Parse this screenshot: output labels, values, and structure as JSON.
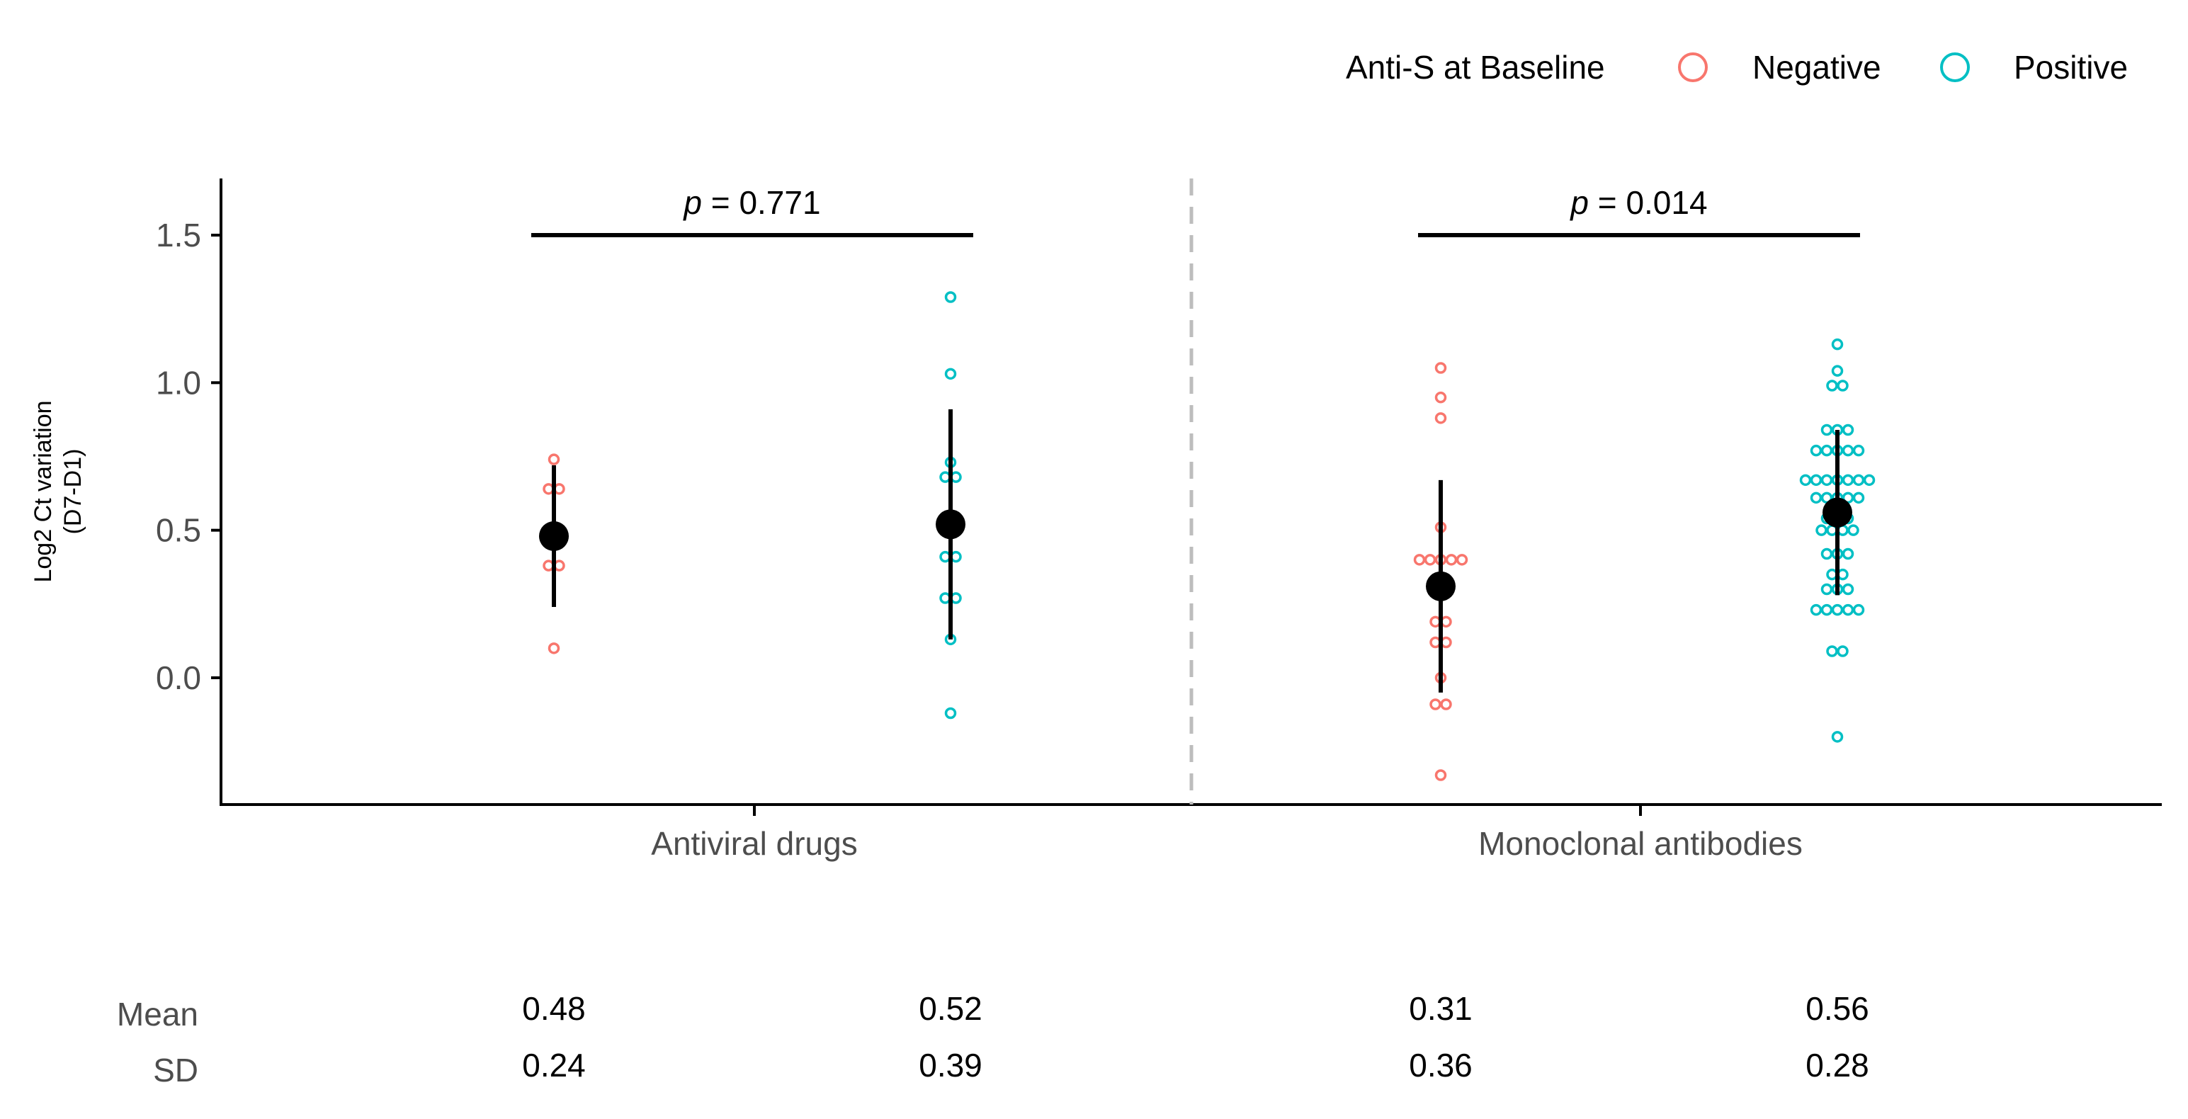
{
  "chart_data": {
    "type": "scatter",
    "title": "",
    "ylabel_line1": "Log2 Ct variation",
    "ylabel_line2": "(D7-D1)",
    "xlabel": "",
    "ylim": [
      -0.45,
      1.7
    ],
    "yticks": [
      "0.0",
      "0.5",
      "1.0",
      "1.5"
    ],
    "ytick_values": [
      0.0,
      0.5,
      1.0,
      1.5
    ],
    "legend": {
      "title": "Anti-S at Baseline",
      "position": "top-right",
      "entries": [
        {
          "label": "Negative",
          "color": "#F8766D"
        },
        {
          "label": "Positive",
          "color": "#00BFC4"
        }
      ]
    },
    "panels": [
      {
        "category": "Antiviral drugs",
        "p_prefix": "p",
        "p_value": " = 0.771",
        "groups": [
          {
            "series": "Negative",
            "mean": 0.48,
            "sd": 0.24,
            "mean_label": "0.48",
            "sd_label": "0.24",
            "points": [
              0.74,
              0.64,
              0.64,
              0.38,
              0.38,
              0.1
            ]
          },
          {
            "series": "Positive",
            "mean": 0.52,
            "sd": 0.39,
            "mean_label": "0.52",
            "sd_label": "0.39",
            "points": [
              1.29,
              1.03,
              0.73,
              0.68,
              0.68,
              0.41,
              0.41,
              0.27,
              0.27,
              0.13,
              -0.12
            ]
          }
        ]
      },
      {
        "category": "Monoclonal antibodies",
        "p_prefix": "p",
        "p_value": " = 0.014",
        "groups": [
          {
            "series": "Negative",
            "mean": 0.31,
            "sd": 0.36,
            "mean_label": "0.31",
            "sd_label": "0.36",
            "points": [
              1.05,
              0.95,
              0.88,
              0.51,
              0.4,
              0.4,
              0.4,
              0.4,
              0.4,
              0.19,
              0.19,
              0.12,
              0.12,
              0.0,
              -0.09,
              -0.09,
              -0.33
            ]
          },
          {
            "series": "Positive",
            "mean": 0.56,
            "sd": 0.28,
            "mean_label": "0.56",
            "sd_label": "0.28",
            "points": [
              1.13,
              1.04,
              0.99,
              0.99,
              0.84,
              0.84,
              0.84,
              0.77,
              0.77,
              0.77,
              0.77,
              0.77,
              0.67,
              0.67,
              0.67,
              0.67,
              0.67,
              0.67,
              0.67,
              0.61,
              0.61,
              0.61,
              0.61,
              0.61,
              0.54,
              0.54,
              0.54,
              0.5,
              0.5,
              0.5,
              0.5,
              0.42,
              0.42,
              0.42,
              0.35,
              0.35,
              0.3,
              0.3,
              0.3,
              0.23,
              0.23,
              0.23,
              0.23,
              0.23,
              0.09,
              0.09,
              -0.2
            ]
          }
        ]
      }
    ],
    "stats_table": {
      "row_labels": [
        "Mean",
        "SD"
      ]
    }
  }
}
